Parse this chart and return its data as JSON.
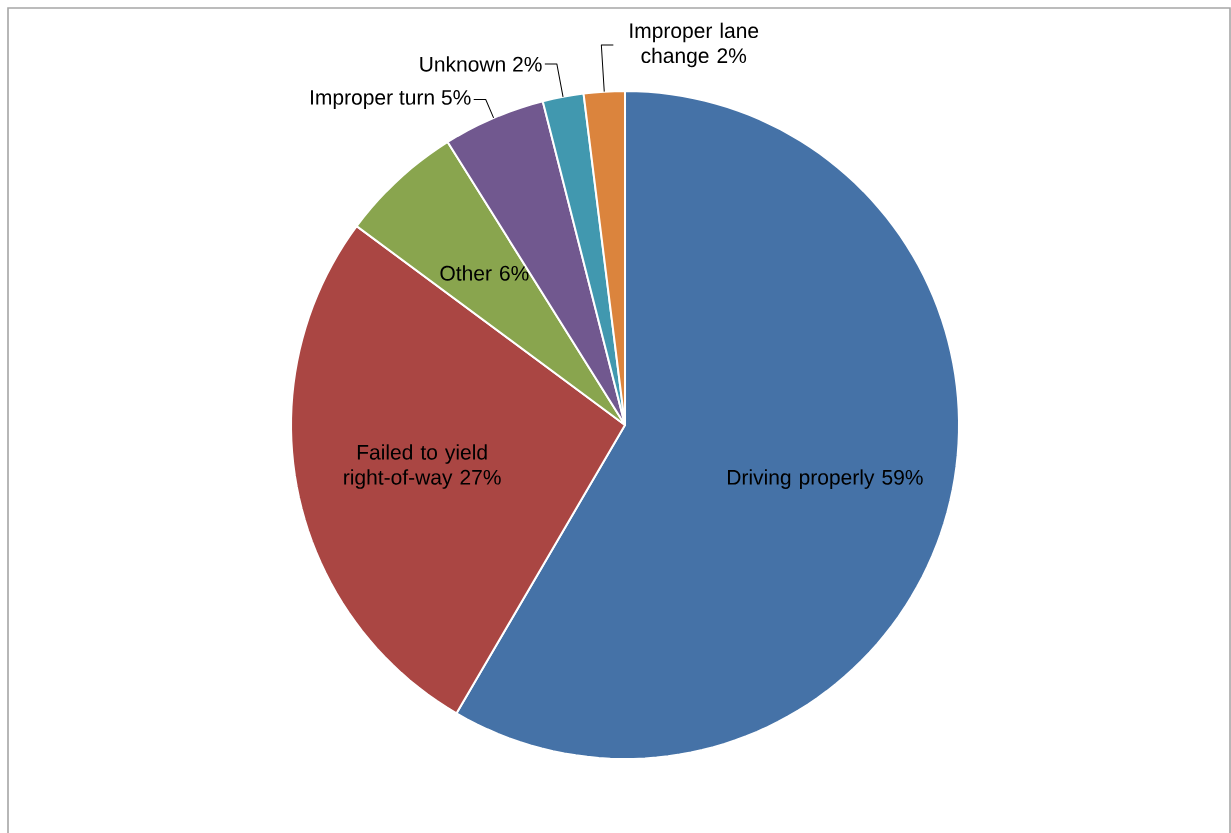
{
  "chart_data": {
    "type": "pie",
    "categories": [
      "Driving properly",
      "Failed to yield right-of-way",
      "Other",
      "Improper turn",
      "Unknown",
      "Improper lane change"
    ],
    "values": [
      59,
      27,
      6,
      5,
      2,
      2
    ],
    "value_labels": [
      "59%",
      "27%",
      "6%",
      "5%",
      "2%",
      "2%"
    ],
    "colors": [
      "#4572a7",
      "#aa4643",
      "#89a54e",
      "#71588f",
      "#4198af",
      "#db843d"
    ]
  }
}
